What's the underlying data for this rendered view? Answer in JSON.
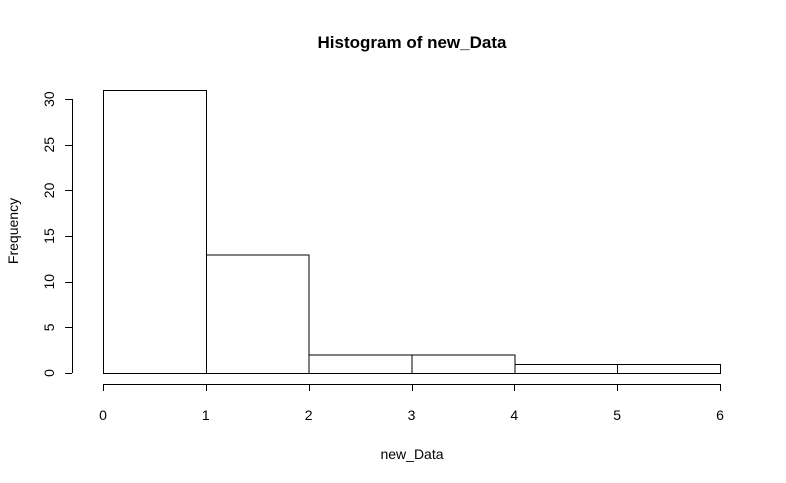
{
  "chart_data": {
    "type": "bar",
    "title": "Histogram of new_Data",
    "xlabel": "new_Data",
    "ylabel": "Frequency",
    "bins": [
      {
        "start": 0,
        "end": 1,
        "value": 31
      },
      {
        "start": 1,
        "end": 2,
        "value": 13
      },
      {
        "start": 2,
        "end": 3,
        "value": 2
      },
      {
        "start": 3,
        "end": 4,
        "value": 2
      },
      {
        "start": 4,
        "end": 5,
        "value": 1
      },
      {
        "start": 5,
        "end": 6,
        "value": 1
      }
    ],
    "xlim": [
      0,
      6
    ],
    "ylim": [
      0,
      31
    ],
    "x_ticks": [
      "0",
      "1",
      "2",
      "3",
      "4",
      "5",
      "6"
    ],
    "y_ticks": [
      "0",
      "5",
      "10",
      "15",
      "20",
      "25",
      "30"
    ],
    "grid": false,
    "legend": "none",
    "colors": {
      "bar_fill": "#ffffff",
      "bar_stroke": "#000000"
    }
  }
}
